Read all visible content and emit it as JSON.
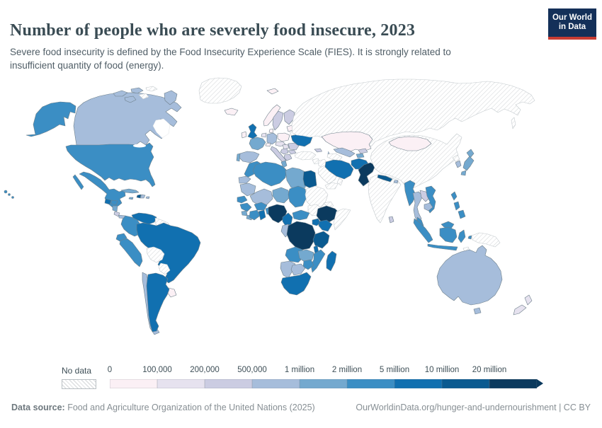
{
  "header": {
    "title": "Number of people who are severely food insecure, 2023",
    "subtitle": "Severe food insecurity is defined by the Food Insecurity Experience Scale (FIES). It is strongly related to insufficient quantity of food (energy).",
    "logo": {
      "line1": "Our World",
      "line2": "in Data"
    }
  },
  "legend": {
    "no_data_label": "No data",
    "tick_labels": [
      "0",
      "100,000",
      "200,000",
      "500,000",
      "1 million",
      "2 million",
      "5 million",
      "10 million",
      "20 million"
    ],
    "colors": [
      "#fbf0f5",
      "#e6e2ef",
      "#cbcce2",
      "#a6bddb",
      "#74a9cf",
      "#3b8ec4",
      "#1170b0",
      "#0a5a90",
      "#0b3a5e"
    ]
  },
  "footer": {
    "source_label": "Data source:",
    "source_text": " Food and Agriculture Organization of the United Nations (2025)",
    "link_text": "OurWorldinData.org/hunger-and-undernourishment | CC BY"
  },
  "colors": {
    "logo_background": "#143059",
    "logo_stripe": "#c93d33",
    "title_text": "#3a4c54",
    "border_data": "#6d7f8a",
    "border_no_data": "#c3c9cd"
  },
  "chart_data": {
    "type": "choropleth_map",
    "title": "Number of people who are severely food insecure",
    "year": 2023,
    "unit": "people",
    "bin_thresholds": [
      "0",
      "100,000",
      "200,000",
      "500,000",
      "1 million",
      "2 million",
      "5 million",
      "10 million",
      "20 million"
    ],
    "bin_ranges": [
      "0-100,000",
      "100,000-200,000",
      "200,000-500,000",
      "500,000-1 million",
      "1-2 million",
      "2-5 million",
      "5-10 million",
      "10-20 million",
      "20+ million"
    ],
    "countries": {
      "United States": 5,
      "Canada": 3,
      "Mexico": 5,
      "Guatemala": 6,
      "Honduras": 5,
      "Nicaragua": 4,
      "Costa Rica": 2,
      "Panama": 3,
      "Cuba": 4,
      "Jamaica": 4,
      "Haiti": 7,
      "Dominican Republic": 3,
      "Puerto Rico": 3,
      "Colombia": 5,
      "Venezuela": 6,
      "Ecuador": 5,
      "Peru": 5,
      "Brazil": 6,
      "Chile": 3,
      "Argentina": 6,
      "Uruguay": 0,
      "Iceland": 0,
      "Svalbard": 0,
      "Norway": 0,
      "Sweden": 2,
      "Finland": 2,
      "Denmark": 0,
      "United Kingdom": 6,
      "Ireland": 0,
      "France": 4,
      "Spain": 3,
      "Portugal": 4,
      "Germany": 3,
      "Netherlands": 1,
      "Switzerland": 0,
      "Austria": 1,
      "Poland": 0,
      "Italy": 2,
      "Hungary": 1,
      "Serbia": 2,
      "Romania": 2,
      "Bulgaria": 2,
      "Greece": 2,
      "Ukraine": 6,
      "Baltic states": 0,
      "Kazakhstan": 0,
      "Uzbekistan": 3,
      "Kyrgyzstan": 2,
      "Tajikistan": 4,
      "Georgia": 2,
      "Azerbaijan": 3,
      "Iran": 6,
      "Afghanistan": 6,
      "Pakistan": 8,
      "Nepal": 7,
      "Bhutan": 3,
      "Bangladesh": 7,
      "Sri Lanka": 2,
      "Mongolia": 0,
      "South Korea": 3,
      "Japan": 4,
      "Myanmar": 5,
      "Thailand": 3,
      "Laos": 2,
      "Cambodia": 3,
      "Vietnam": 5,
      "Malaysia": 5,
      "Indonesia": 5,
      "Philippines": 5,
      "Australia": 3,
      "New Zealand": 1,
      "Morocco": 5,
      "Western Sahara": 3,
      "Algeria": 5,
      "Tunisia": 4,
      "Libya": 4,
      "Egypt": 7,
      "Mauritania": 3,
      "Mali": 3,
      "Niger": 4,
      "Chad": 5,
      "Senegal": 5,
      "Guinea": 5,
      "Sierra Leone": 4,
      "Liberia": 4,
      "Ivory Coast": 5,
      "Ghana": 6,
      "Burkina Faso": 5,
      "Benin": 5,
      "Nigeria": 8,
      "Cameroon": 6,
      "Central African Republic": 5,
      "Gabon": 3,
      "DR Congo": 8,
      "Uganda": 6,
      "Kenya": 6,
      "Ethiopia": 8,
      "Tanzania": 7,
      "Angola": 5,
      "Zambia": 4,
      "Malawi": 6,
      "Mozambique": 5,
      "Zimbabwe": 5,
      "Namibia": 3,
      "Botswana": 3,
      "South Africa": 6,
      "Madagascar": 6
    },
    "no_data": [
      "Greenland",
      "Russia",
      "China",
      "India",
      "North Korea",
      "Turkey",
      "Syria",
      "Iraq",
      "Saudi Arabia",
      "Yemen",
      "Oman",
      "Turkmenistan",
      "Belarus",
      "Sudan",
      "South Sudan",
      "Eritrea",
      "Somalia",
      "Bolivia",
      "Paraguay",
      "Guyana",
      "Suriname",
      "Papua New Guinea",
      "Timor",
      "Sakhalin",
      "Arctic island"
    ]
  }
}
